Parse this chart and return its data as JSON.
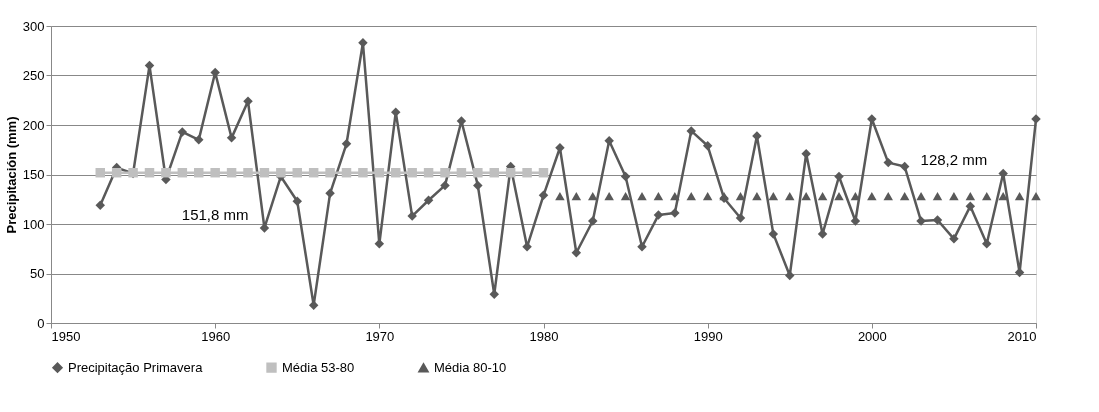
{
  "chart_data": {
    "type": "line",
    "ylabel": "Precipitación (mm)",
    "xlim": [
      1950,
      2010
    ],
    "xticks": [
      1950,
      1960,
      1970,
      1980,
      1990,
      2000,
      2010
    ],
    "ylim": [
      0,
      300
    ],
    "yticks": [
      0,
      50,
      100,
      150,
      200,
      250,
      300
    ],
    "grid": "y",
    "legend": "bottom",
    "line_style": "solid",
    "series": [
      {
        "name": "Precipitação Primavera",
        "marker": "diamond",
        "color": "#595959",
        "x": [
          1953,
          1954,
          1955,
          1956,
          1957,
          1958,
          1959,
          1960,
          1961,
          1962,
          1963,
          1964,
          1965,
          1966,
          1967,
          1968,
          1969,
          1970,
          1971,
          1972,
          1973,
          1974,
          1975,
          1976,
          1977,
          1978,
          1979,
          1980,
          1981,
          1982,
          1983,
          1984,
          1985,
          1986,
          1987,
          1988,
          1989,
          1990,
          1991,
          1992,
          1993,
          1994,
          1995,
          1996,
          1997,
          1998,
          1999,
          2000,
          2001,
          2002,
          2003,
          2004,
          2005,
          2006,
          2007,
          2008,
          2009,
          2010
        ],
        "values": [
          119,
          157,
          151,
          260,
          145,
          193,
          185,
          253,
          187,
          224,
          96,
          148,
          123,
          18,
          131,
          181,
          283,
          80,
          213,
          108,
          124,
          139,
          204,
          139,
          29,
          158,
          77,
          129,
          177,
          71,
          103,
          184,
          148,
          77,
          109,
          111,
          194,
          179,
          126,
          106,
          189,
          90,
          48,
          171,
          90,
          148,
          103,
          206,
          162,
          158,
          103,
          104,
          85,
          118,
          80,
          151,
          51,
          206
        ]
      },
      {
        "name": "Média 53-80",
        "type": "line",
        "marker": "square",
        "color": "#bfbfbf",
        "x": [
          1953,
          1954,
          1955,
          1956,
          1957,
          1958,
          1959,
          1960,
          1961,
          1962,
          1963,
          1964,
          1965,
          1966,
          1967,
          1968,
          1969,
          1970,
          1971,
          1972,
          1973,
          1974,
          1975,
          1976,
          1977,
          1978,
          1979,
          1980
        ],
        "values": [
          151.8,
          151.8,
          151.8,
          151.8,
          151.8,
          151.8,
          151.8,
          151.8,
          151.8,
          151.8,
          151.8,
          151.8,
          151.8,
          151.8,
          151.8,
          151.8,
          151.8,
          151.8,
          151.8,
          151.8,
          151.8,
          151.8,
          151.8,
          151.8,
          151.8,
          151.8,
          151.8,
          151.8
        ]
      },
      {
        "name": "Média 80-10",
        "type": "scatter",
        "marker": "triangle",
        "color": "#595959",
        "x": [
          1981,
          1982,
          1983,
          1984,
          1985,
          1986,
          1987,
          1988,
          1989,
          1990,
          1991,
          1992,
          1993,
          1994,
          1995,
          1996,
          1997,
          1998,
          1999,
          2000,
          2001,
          2002,
          2003,
          2004,
          2005,
          2006,
          2007,
          2008,
          2009,
          2010
        ],
        "values": [
          128.2,
          128.2,
          128.2,
          128.2,
          128.2,
          128.2,
          128.2,
          128.2,
          128.2,
          128.2,
          128.2,
          128.2,
          128.2,
          128.2,
          128.2,
          128.2,
          128.2,
          128.2,
          128.2,
          128.2,
          128.2,
          128.2,
          128.2,
          128.2,
          128.2,
          128.2,
          128.2,
          128.2,
          128.2,
          128.2
        ]
      }
    ],
    "annotations": [
      {
        "text": "151,8 mm",
        "x": 1960,
        "y": 151.8
      },
      {
        "text": "128,2 mm",
        "x": 2005,
        "y": 128.2
      }
    ]
  }
}
